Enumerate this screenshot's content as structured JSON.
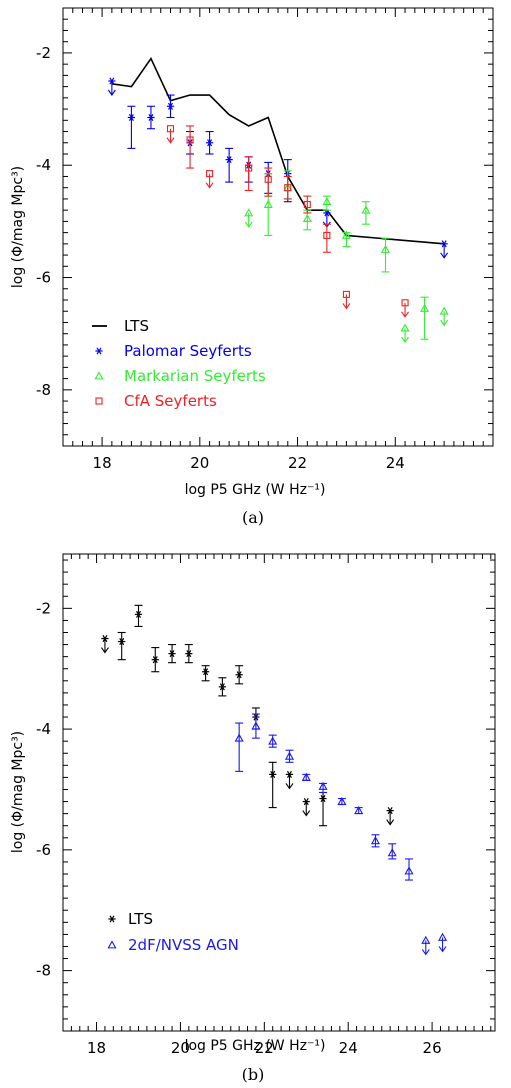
{
  "figure": {
    "panels": [
      {
        "panel_label": "(a)",
        "xlabel": "log P5 GHz (W Hz⁻¹)",
        "ylabel": "log (Φ/mag Mpc³)",
        "x_ticks": [
          18,
          20,
          22,
          24
        ],
        "y_ticks": [
          -8,
          -6,
          -4,
          -2
        ]
      },
      {
        "panel_label": "(b)",
        "xlabel": "log P5 GHz (W Hz⁻¹)",
        "ylabel": "log (Φ/mag Mpc³)",
        "x_ticks": [
          18,
          20,
          22,
          24,
          26
        ],
        "y_ticks": [
          -8,
          -6,
          -4,
          -2
        ]
      }
    ]
  },
  "chart_data": [
    {
      "type": "scatter",
      "title": "",
      "xlabel": "log P5 GHz (W Hz⁻¹)",
      "ylabel": "log (Φ/mag Mpc³)",
      "xlim": [
        17.2,
        26.0
      ],
      "ylim": [
        -9.0,
        -1.2
      ],
      "legend_position": "bottom-left",
      "series": [
        {
          "name": "LTS",
          "style": "line",
          "color": "#000000",
          "x": [
            18.2,
            18.6,
            19.0,
            19.4,
            19.8,
            20.2,
            20.6,
            21.0,
            21.4,
            21.8,
            22.2,
            22.6,
            23.0,
            25.0
          ],
          "y": [
            -2.55,
            -2.6,
            -2.1,
            -2.85,
            -2.75,
            -2.75,
            -3.1,
            -3.3,
            -3.15,
            -4.2,
            -4.8,
            -4.8,
            -5.25,
            -5.4
          ]
        },
        {
          "name": "Palomar Seyferts",
          "style": "marker",
          "marker": "asterisk",
          "color": "#0000ee",
          "points": [
            {
              "x": 18.2,
              "y": -2.5,
              "upper": true
            },
            {
              "x": 18.6,
              "y": -3.15,
              "lo": -3.7,
              "hi": -2.95
            },
            {
              "x": 19.0,
              "y": -3.15,
              "lo": -3.35,
              "hi": -2.95
            },
            {
              "x": 19.4,
              "y": -2.95,
              "lo": -3.15,
              "hi": -2.75
            },
            {
              "x": 19.8,
              "y": -3.6,
              "lo": -3.8,
              "hi": -3.4
            },
            {
              "x": 20.2,
              "y": -3.6,
              "lo": -3.8,
              "hi": -3.4
            },
            {
              "x": 20.6,
              "y": -3.9,
              "lo": -4.3,
              "hi": -3.7
            },
            {
              "x": 21.0,
              "y": -4.0,
              "lo": -4.3,
              "hi": -3.85
            },
            {
              "x": 21.4,
              "y": -4.15,
              "lo": -4.5,
              "hi": -3.95
            },
            {
              "x": 21.8,
              "y": -4.15,
              "lo": -4.65,
              "hi": -3.9
            },
            {
              "x": 22.6,
              "y": -4.85,
              "upper": true
            },
            {
              "x": 25.0,
              "y": -5.4,
              "upper": true
            }
          ]
        },
        {
          "name": "Markarian Seyferts",
          "style": "marker",
          "marker": "triangle",
          "color": "#33ee33",
          "points": [
            {
              "x": 21.0,
              "y": -4.85,
              "upper": true
            },
            {
              "x": 21.4,
              "y": -4.7,
              "lo": -5.25,
              "hi": -4.15
            },
            {
              "x": 21.8,
              "y": -4.4,
              "lo": -4.6,
              "hi": -4.1
            },
            {
              "x": 22.2,
              "y": -4.95,
              "lo": -5.15,
              "hi": -4.8
            },
            {
              "x": 22.6,
              "y": -4.65,
              "lo": -4.8,
              "hi": -4.55
            },
            {
              "x": 23.0,
              "y": -5.25,
              "lo": -5.45,
              "hi": -5.2
            },
            {
              "x": 23.4,
              "y": -4.8,
              "lo": -5.05,
              "hi": -4.65
            },
            {
              "x": 23.8,
              "y": -5.5,
              "lo": -5.9,
              "hi": -5.3
            },
            {
              "x": 24.2,
              "y": -6.9,
              "upper": true
            },
            {
              "x": 24.6,
              "y": -6.55,
              "lo": -7.1,
              "hi": -6.35
            },
            {
              "x": 25.0,
              "y": -6.6,
              "upper": true
            }
          ]
        },
        {
          "name": "CfA Seyferts",
          "style": "marker",
          "marker": "square",
          "color": "#ee2222",
          "points": [
            {
              "x": 19.4,
              "y": -3.35,
              "upper": true
            },
            {
              "x": 19.8,
              "y": -3.55,
              "lo": -4.05,
              "hi": -3.3
            },
            {
              "x": 20.2,
              "y": -4.15,
              "upper": true
            },
            {
              "x": 21.0,
              "y": -4.05,
              "lo": -4.45,
              "hi": -3.85
            },
            {
              "x": 21.4,
              "y": -4.25,
              "lo": -4.55,
              "hi": -4.05
            },
            {
              "x": 21.8,
              "y": -4.4,
              "lo": -4.6,
              "hi": -4.2
            },
            {
              "x": 22.2,
              "y": -4.7,
              "lo": -4.85,
              "hi": -4.55
            },
            {
              "x": 22.6,
              "y": -5.25,
              "lo": -5.55,
              "hi": -5.05
            },
            {
              "x": 23.0,
              "y": -6.3,
              "upper": true
            },
            {
              "x": 24.2,
              "y": -6.45,
              "upper": true
            }
          ]
        }
      ]
    },
    {
      "type": "scatter",
      "title": "",
      "xlabel": "log P5 GHz (W Hz⁻¹)",
      "ylabel": "log (Φ/mag Mpc³)",
      "xlim": [
        17.2,
        27.5
      ],
      "ylim": [
        -9.0,
        -1.1
      ],
      "legend_position": "bottom-left",
      "series": [
        {
          "name": "LTS",
          "style": "marker",
          "marker": "asterisk",
          "color": "#000000",
          "points": [
            {
              "x": 18.2,
              "y": -2.5,
              "upper": true
            },
            {
              "x": 18.6,
              "y": -2.55,
              "lo": -2.85,
              "hi": -2.4
            },
            {
              "x": 19.0,
              "y": -2.1,
              "lo": -2.3,
              "hi": -1.95
            },
            {
              "x": 19.4,
              "y": -2.85,
              "lo": -3.05,
              "hi": -2.65
            },
            {
              "x": 19.8,
              "y": -2.75,
              "lo": -2.9,
              "hi": -2.6
            },
            {
              "x": 20.2,
              "y": -2.75,
              "lo": -2.9,
              "hi": -2.6
            },
            {
              "x": 20.6,
              "y": -3.05,
              "lo": -3.2,
              "hi": -2.95
            },
            {
              "x": 21.0,
              "y": -3.3,
              "lo": -3.45,
              "hi": -3.15
            },
            {
              "x": 21.4,
              "y": -3.1,
              "lo": -3.25,
              "hi": -2.95
            },
            {
              "x": 21.8,
              "y": -3.8,
              "lo": -4.0,
              "hi": -3.65
            },
            {
              "x": 22.2,
              "y": -4.75,
              "lo": -5.3,
              "hi": -4.55
            },
            {
              "x": 22.6,
              "y": -4.75,
              "upper": true
            },
            {
              "x": 23.0,
              "y": -5.2,
              "upper": true
            },
            {
              "x": 23.4,
              "y": -5.15,
              "lo": -5.6,
              "hi": -5.05
            },
            {
              "x": 25.0,
              "y": -5.35,
              "upper": true
            }
          ]
        },
        {
          "name": "2dF/NVSS AGN",
          "style": "marker",
          "marker": "triangle",
          "color": "#1a1aee",
          "points": [
            {
              "x": 21.4,
              "y": -4.15,
              "lo": -4.7,
              "hi": -3.9
            },
            {
              "x": 21.8,
              "y": -3.95,
              "lo": -4.15,
              "hi": -3.75
            },
            {
              "x": 22.2,
              "y": -4.2,
              "lo": -4.3,
              "hi": -4.1
            },
            {
              "x": 22.6,
              "y": -4.45,
              "lo": -4.55,
              "hi": -4.35
            },
            {
              "x": 23.0,
              "y": -4.8,
              "lo": -4.85,
              "hi": -4.75
            },
            {
              "x": 23.4,
              "y": -4.95,
              "lo": -5.05,
              "hi": -4.9
            },
            {
              "x": 23.85,
              "y": -5.2,
              "lo": -5.25,
              "hi": -5.15
            },
            {
              "x": 24.25,
              "y": -5.35,
              "lo": -5.4,
              "hi": -5.3
            },
            {
              "x": 24.65,
              "y": -5.85,
              "lo": -5.95,
              "hi": -5.75
            },
            {
              "x": 25.05,
              "y": -6.05,
              "lo": -6.15,
              "hi": -5.9
            },
            {
              "x": 25.45,
              "y": -6.35,
              "lo": -6.5,
              "hi": -6.15
            },
            {
              "x": 25.85,
              "y": -7.5,
              "upper": true
            },
            {
              "x": 26.25,
              "y": -7.45,
              "upper": true
            }
          ]
        }
      ]
    }
  ]
}
